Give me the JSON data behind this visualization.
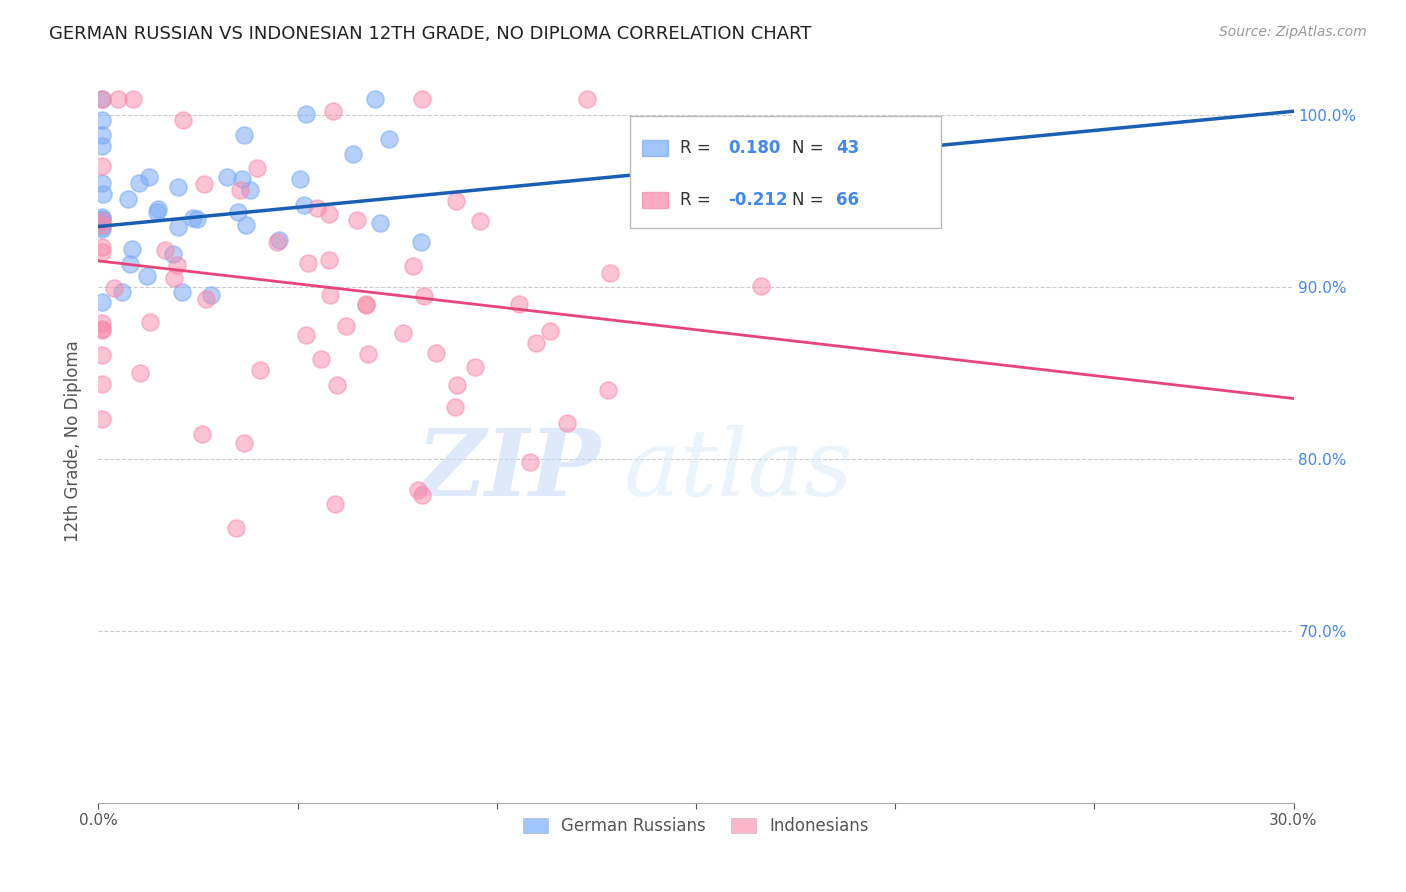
{
  "title": "GERMAN RUSSIAN VS INDONESIAN 12TH GRADE, NO DIPLOMA CORRELATION CHART",
  "source": "Source: ZipAtlas.com",
  "ylabel": "12th Grade, No Diploma",
  "xmin": 0.0,
  "xmax": 0.3,
  "ymin": 0.6,
  "ymax": 1.02,
  "xticks": [
    0.0,
    0.05,
    0.1,
    0.15,
    0.2,
    0.25,
    0.3
  ],
  "xticklabels": [
    "0.0%",
    "",
    "",
    "",
    "",
    "",
    "30.0%"
  ],
  "yticks": [
    0.7,
    0.8,
    0.9,
    1.0
  ],
  "yticklabels": [
    "70.0%",
    "80.0%",
    "90.0%",
    "100.0%"
  ],
  "r_german": 0.18,
  "n_german": 43,
  "r_indonesian": -0.212,
  "n_indonesian": 66,
  "color_german": "#7aabf7",
  "color_indonesian": "#f888a8",
  "color_line_german": "#1a5fb4",
  "color_line_indonesian": "#e8447a",
  "legend_label_german": "German Russians",
  "legend_label_indonesian": "Indonesians",
  "watermark_zip": "ZIP",
  "watermark_atlas": "atlas",
  "background_color": "#ffffff",
  "grid_color": "#cccccc",
  "title_color": "#222222",
  "axis_label_color": "#555555",
  "right_axis_color": "#4488ee",
  "german_line_x0": 0.0,
  "german_line_y0": 0.935,
  "german_line_x1": 0.3,
  "german_line_y1": 1.002,
  "indonesian_line_x0": 0.0,
  "indonesian_line_y0": 0.915,
  "indonesian_line_x1": 0.3,
  "indonesian_line_y1": 0.835
}
